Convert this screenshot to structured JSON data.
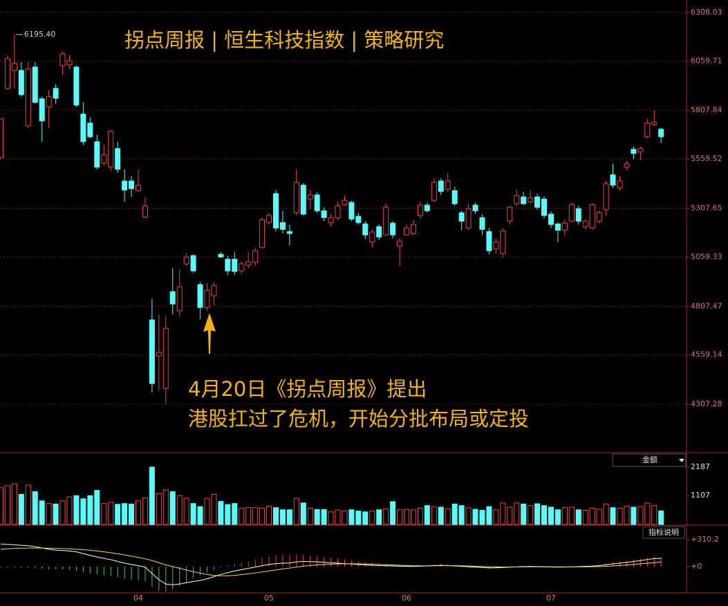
{
  "chart_data": [
    {
      "type": "candlestick",
      "title": "拐点周报 | 恒生科技指数 | 策略研究",
      "annotations": [
        "4月20日《拐点周报》提出",
        "港股扛过了危机，开始分批布局或定投"
      ],
      "max_label": "6195.40",
      "up_color": "#ff3c3c",
      "down_color": "#54fcfc",
      "ylim": [
        4060.3,
        6371.5
      ],
      "yticks": [
        4307.28,
        4559.14,
        4807.47,
        5059.33,
        5307.65,
        5559.52,
        5807.84,
        6059.71,
        6308.03
      ],
      "grid": true,
      "candles": [
        [
          5567,
          5765,
          5560,
          5765
        ],
        [
          5920,
          6089,
          5913,
          6072
        ],
        [
          6012,
          6195.4,
          5920,
          6047
        ],
        [
          6012,
          6054,
          5878,
          5888
        ],
        [
          5729,
          6054,
          5719,
          6019
        ],
        [
          6029,
          6054,
          5842,
          5849
        ],
        [
          5867,
          5878,
          5648,
          5754
        ],
        [
          5825,
          5913,
          5719,
          5878
        ],
        [
          5920,
          5941,
          5842,
          5870
        ],
        [
          6036,
          6107,
          5990,
          6096
        ],
        [
          6040,
          6089,
          6019,
          6061
        ],
        [
          6029,
          6036,
          5825,
          5835
        ],
        [
          5789,
          5849,
          5630,
          5648
        ],
        [
          5743,
          5772,
          5666,
          5673
        ],
        [
          5648,
          5683,
          5507,
          5518
        ],
        [
          5539,
          5630,
          5525,
          5581
        ],
        [
          5518,
          5708,
          5496,
          5701
        ],
        [
          5613,
          5648,
          5489,
          5507
        ],
        [
          5447,
          5507,
          5341,
          5401
        ],
        [
          5447,
          5472,
          5366,
          5408
        ],
        [
          5398,
          5507,
          5391,
          5426
        ],
        [
          5263,
          5366,
          5256,
          5320
        ],
        [
          4738,
          4847,
          4367,
          4413
        ],
        [
          4554,
          4766,
          4378,
          4572
        ],
        [
          4388,
          4755,
          4307,
          4695
        ],
        [
          4882,
          5002,
          4766,
          4819
        ],
        [
          4784,
          4995,
          4755,
          4907
        ],
        [
          5024,
          5080,
          5013,
          5059
        ],
        [
          5066,
          5073,
          4978,
          4988
        ],
        [
          4918,
          4932,
          4741,
          4801
        ],
        [
          4801,
          4925,
          4784,
          4889
        ],
        [
          4861,
          4932,
          4812,
          4914
        ],
        [
          5073,
          5084,
          5055,
          5059
        ],
        [
          5048,
          5066,
          4967,
          4988
        ],
        [
          5048,
          5084,
          4967,
          4985
        ],
        [
          4988,
          5038,
          4971,
          5024
        ],
        [
          5017,
          5084,
          5002,
          5034
        ],
        [
          5031,
          5108,
          5013,
          5091
        ],
        [
          5108,
          5260,
          5101,
          5249
        ],
        [
          5235,
          5285,
          5225,
          5271
        ],
        [
          5383,
          5401,
          5189,
          5207
        ],
        [
          5235,
          5295,
          5179,
          5200
        ],
        [
          5189,
          5225,
          5119,
          5179
        ],
        [
          5285,
          5507,
          5271,
          5440
        ],
        [
          5426,
          5436,
          5271,
          5278
        ],
        [
          5355,
          5401,
          5306,
          5376
        ],
        [
          5376,
          5391,
          5285,
          5295
        ],
        [
          5295,
          5313,
          5242,
          5260
        ],
        [
          5235,
          5278,
          5214,
          5260
        ],
        [
          5260,
          5341,
          5249,
          5320
        ],
        [
          5327,
          5373,
          5320,
          5348
        ],
        [
          5338,
          5345,
          5242,
          5253
        ],
        [
          5267,
          5285,
          5225,
          5235
        ],
        [
          5228,
          5242,
          5151,
          5172
        ],
        [
          5136,
          5200,
          5108,
          5186
        ],
        [
          5214,
          5225,
          5147,
          5161
        ],
        [
          5172,
          5331,
          5168,
          5313
        ],
        [
          5232,
          5242,
          5154,
          5172
        ],
        [
          5115,
          5154,
          5013,
          5140
        ],
        [
          5172,
          5225,
          5168,
          5207
        ],
        [
          5179,
          5249,
          5172,
          5225
        ],
        [
          5271,
          5341,
          5256,
          5324
        ],
        [
          5324,
          5338,
          5285,
          5295
        ],
        [
          5348,
          5461,
          5338,
          5440
        ],
        [
          5447,
          5461,
          5376,
          5394
        ],
        [
          5405,
          5489,
          5391,
          5447
        ],
        [
          5398,
          5419,
          5320,
          5331
        ],
        [
          5285,
          5295,
          5196,
          5242
        ],
        [
          5207,
          5331,
          5196,
          5306
        ],
        [
          5324,
          5338,
          5278,
          5295
        ],
        [
          5260,
          5278,
          5172,
          5200
        ],
        [
          5189,
          5207,
          5073,
          5091
        ],
        [
          5101,
          5154,
          5077,
          5136
        ],
        [
          5077,
          5207,
          5055,
          5193
        ],
        [
          5242,
          5320,
          5225,
          5313
        ],
        [
          5331,
          5401,
          5320,
          5373
        ],
        [
          5366,
          5391,
          5324,
          5331
        ],
        [
          5341,
          5401,
          5331,
          5362
        ],
        [
          5366,
          5383,
          5299,
          5313
        ],
        [
          5355,
          5369,
          5256,
          5271
        ],
        [
          5278,
          5292,
          5207,
          5225
        ],
        [
          5228,
          5235,
          5136,
          5196
        ],
        [
          5196,
          5249,
          5168,
          5232
        ],
        [
          5242,
          5338,
          5235,
          5327
        ],
        [
          5306,
          5320,
          5225,
          5242
        ],
        [
          5214,
          5249,
          5200,
          5242
        ],
        [
          5207,
          5334,
          5200,
          5327
        ],
        [
          5242,
          5295,
          5232,
          5285
        ],
        [
          5302,
          5447,
          5271,
          5433
        ],
        [
          5479,
          5535,
          5412,
          5426
        ],
        [
          5412,
          5472,
          5398,
          5447
        ],
        [
          5518,
          5549,
          5503,
          5535
        ],
        [
          5609,
          5623,
          5560,
          5588
        ],
        [
          5595,
          5623,
          5553,
          5613
        ],
        [
          5673,
          5765,
          5666,
          5743
        ],
        [
          5736,
          5807,
          5729,
          5747
        ],
        [
          5712,
          5719,
          5641,
          5673
        ]
      ]
    },
    {
      "type": "bar",
      "selector": "金额",
      "ylim": [
        0,
        2689
      ],
      "yticks": [
        1107,
        2187
      ],
      "values": [
        1400,
        1480,
        1550,
        1150,
        1500,
        1250,
        900,
        800,
        780,
        900,
        1050,
        1100,
        980,
        1100,
        1300,
        800,
        850,
        770,
        800,
        780,
        900,
        1020,
        2187,
        1180,
        1320,
        1250,
        1100,
        1000,
        800,
        680,
        1000,
        1150,
        880,
        760,
        800,
        620,
        650,
        640,
        620,
        700,
        640,
        560,
        560,
        1000,
        820,
        620,
        570,
        570,
        480,
        550,
        520,
        560,
        510,
        480,
        510,
        560,
        600,
        870,
        560,
        580,
        560,
        620,
        720,
        680,
        660,
        600,
        780,
        720,
        640,
        580,
        540,
        680,
        560,
        820,
        660,
        820,
        780,
        720,
        790,
        720,
        660,
        560,
        640,
        660,
        560,
        540,
        620,
        580,
        780,
        640,
        620,
        700,
        660,
        680,
        820,
        720,
        520
      ]
    },
    {
      "type": "macd",
      "button": "指标说明",
      "pos_color": "#ff3c3c",
      "neg_color": "#3cd03c",
      "ylim": [
        -302,
        461
      ],
      "yticks": [
        {
          "value": 310.2,
          "label": "+310.2"
        },
        {
          "value": 0,
          "label": "+0"
        }
      ],
      "categories": [
        null,
        null,
        null,
        null,
        null,
        null,
        null,
        null,
        null,
        null,
        null,
        null,
        null,
        null,
        null,
        null,
        null,
        null,
        null,
        null,
        "04",
        null,
        null,
        null,
        null,
        null,
        null,
        null,
        null,
        null,
        null,
        null,
        null,
        null,
        null,
        null,
        null,
        null,
        null,
        "05",
        null,
        null,
        null,
        null,
        null,
        null,
        null,
        null,
        null,
        null,
        null,
        null,
        null,
        null,
        null,
        null,
        null,
        null,
        null,
        "06",
        null,
        null,
        null,
        null,
        null,
        null,
        null,
        null,
        null,
        null,
        null,
        null,
        null,
        null,
        null,
        null,
        null,
        null,
        null,
        null,
        "07",
        null,
        null,
        null,
        null,
        null,
        null,
        null,
        null,
        null,
        null,
        null,
        null,
        null,
        null,
        null,
        null
      ],
      "histogram": [
        -10,
        -12,
        -12,
        -15,
        -15,
        -20,
        -25,
        -30,
        -30,
        -32,
        -35,
        -45,
        -60,
        -75,
        -90,
        -100,
        -110,
        -120,
        -140,
        -150,
        -160,
        -170,
        -230,
        -280,
        -290,
        -260,
        -220,
        -180,
        -140,
        -100,
        -70,
        -40,
        -10,
        10,
        30,
        45,
        60,
        80,
        100,
        120,
        130,
        135,
        130,
        140,
        135,
        125,
        120,
        110,
        100,
        90,
        80,
        70,
        60,
        50,
        40,
        35,
        30,
        25,
        20,
        15,
        12,
        15,
        18,
        25,
        30,
        25,
        15,
        5,
        -5,
        -10,
        -15,
        -20,
        -18,
        -10,
        -5,
        0,
        5,
        8,
        5,
        0,
        -3,
        -5,
        -2,
        0,
        3,
        5,
        8,
        15,
        30,
        45,
        55,
        65,
        80,
        90,
        105,
        115,
        110
      ],
      "series": [
        {
          "color": "#ffffff",
          "values": [
            260,
            255,
            250,
            245,
            240,
            230,
            215,
            200,
            190,
            185,
            180,
            170,
            150,
            130,
            110,
            95,
            80,
            60,
            40,
            25,
            10,
            -5,
            -80,
            -150,
            -200,
            -210,
            -200,
            -185,
            -170,
            -160,
            -140,
            -115,
            -90,
            -70,
            -50,
            -35,
            -20,
            -5,
            10,
            25,
            35,
            40,
            42,
            55,
            60,
            58,
            55,
            50,
            45,
            40,
            35,
            30,
            25,
            20,
            15,
            12,
            10,
            8,
            5,
            3,
            2,
            5,
            8,
            12,
            15,
            12,
            8,
            3,
            -2,
            -6,
            -10,
            -15,
            -14,
            -10,
            -6,
            -3,
            0,
            2,
            0,
            -2,
            -4,
            -6,
            -5,
            -3,
            0,
            3,
            6,
            12,
            22,
            32,
            40,
            50,
            60,
            70,
            82,
            92,
            95
          ]
        },
        {
          "color": "#f0e040",
          "values": [
            200,
            205,
            210,
            212,
            214,
            215,
            214,
            212,
            210,
            208,
            205,
            200,
            195,
            188,
            180,
            170,
            160,
            148,
            135,
            120,
            105,
            90,
            70,
            45,
            20,
            0,
            -20,
            -40,
            -58,
            -75,
            -90,
            -100,
            -105,
            -105,
            -100,
            -92,
            -83,
            -73,
            -62,
            -50,
            -38,
            -27,
            -17,
            -5,
            5,
            13,
            20,
            25,
            29,
            32,
            33,
            33,
            32,
            30,
            28,
            25,
            22,
            19,
            16,
            13,
            10,
            9,
            9,
            10,
            11,
            11,
            10,
            9,
            7,
            4,
            1,
            -2,
            -4,
            -5,
            -5,
            -4,
            -3,
            -2,
            -2,
            -2,
            -2,
            -3,
            -3,
            -3,
            -3,
            -2,
            -1,
            1,
            4,
            8,
            13,
            19,
            25,
            32,
            39,
            46,
            53
          ]
        }
      ]
    }
  ]
}
